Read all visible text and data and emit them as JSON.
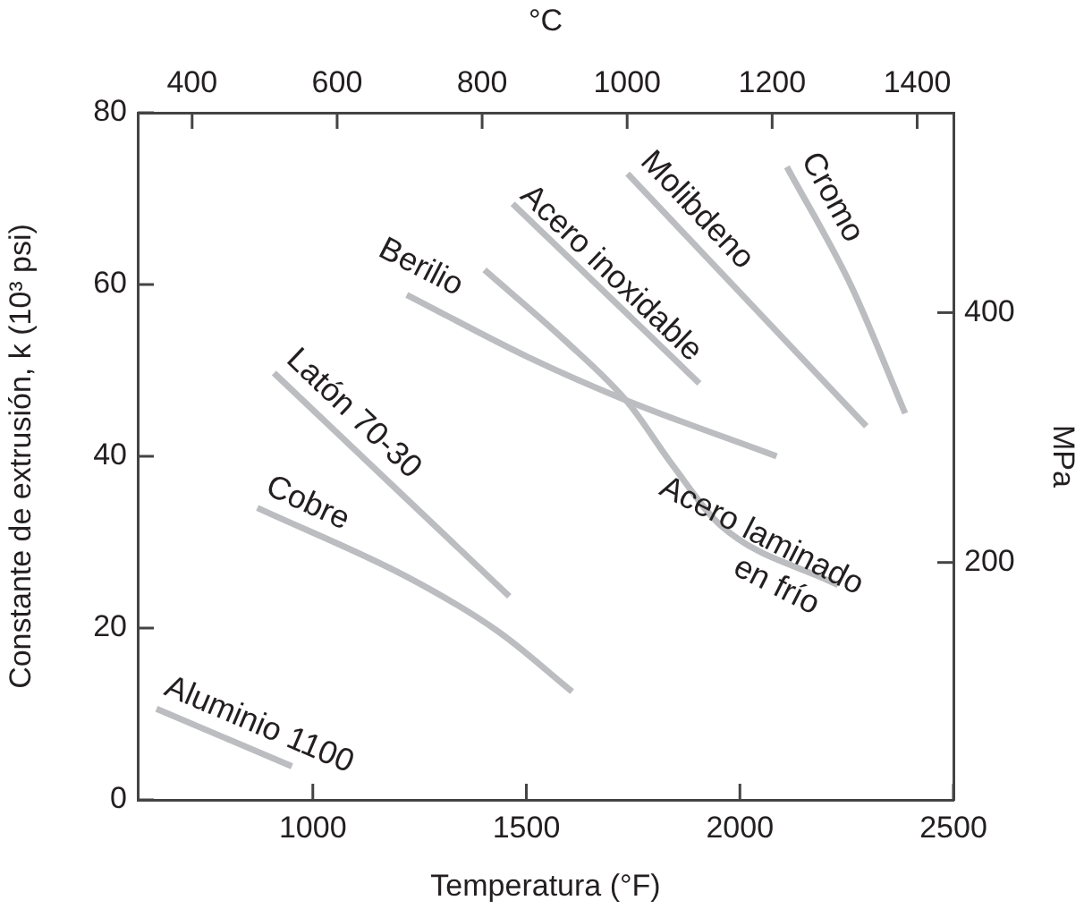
{
  "chart_data": {
    "type": "line",
    "xlabel": "Temperatura (°F)",
    "ylabel": "Constante de extrusión, k (10³ psi)",
    "y2label": "MPa",
    "x2label": "°C",
    "xlim": [
      590,
      2500
    ],
    "xticks": [
      1000,
      1500,
      2000,
      2500
    ],
    "ylim": [
      0,
      80
    ],
    "yticks": [
      0,
      20,
      40,
      60,
      80
    ],
    "x2lim": [
      325,
      1450
    ],
    "x2ticks": [
      400,
      600,
      800,
      1000,
      1200,
      1400
    ],
    "y2lim": [
      10,
      560
    ],
    "y2ticks": [
      200,
      400
    ],
    "grid": false,
    "legend": false,
    "marker": "none",
    "line_style": "solid",
    "series": [
      {
        "name": "Aluminio 1100",
        "color": "#bcbdc0",
        "x": [
          634,
          951
        ],
        "values": [
          10.6,
          3.9
        ]
      },
      {
        "name": "Latón 70-30",
        "color": "#bcbdc0",
        "x": [
          909,
          1460
        ],
        "values": [
          49.7,
          23.7
        ]
      },
      {
        "name": "Cobre",
        "color": "#bcbdc0",
        "x": [
          870,
          1227,
          1437,
          1607
        ],
        "values": [
          34,
          25.8,
          19.5,
          12.6
        ]
      },
      {
        "name": "Berilio",
        "color": "#bcbdc0",
        "x": [
          1220,
          1506,
          1730,
          2086
        ],
        "values": [
          58.8,
          51.5,
          46.6,
          40
        ]
      },
      {
        "name": "Acero laminado en frío",
        "color": "#bcbdc0",
        "x": [
          1402,
          1590,
          1737,
          1842,
          1954,
          2230
        ],
        "values": [
          61.7,
          53.5,
          46.3,
          39,
          32,
          25
        ]
      },
      {
        "name": "Acero inoxidable",
        "color": "#bcbdc0",
        "x": [
          1468,
          1905
        ],
        "values": [
          69.4,
          48.5
        ]
      },
      {
        "name": "Molibdeno",
        "color": "#bcbdc0",
        "x": [
          1737,
          2296
        ],
        "values": [
          72.9,
          43.5
        ]
      },
      {
        "name": "Cromo",
        "color": "#bcbdc0",
        "x": [
          2110,
          2261,
          2387
        ],
        "values": [
          73.7,
          59.8,
          45
        ]
      }
    ]
  }
}
